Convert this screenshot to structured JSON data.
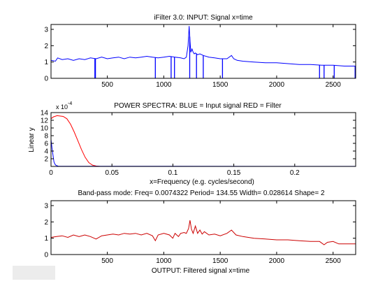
{
  "chart_data": [
    {
      "type": "line",
      "title": "iFilter 3.0: INPUT: Signal    x=time",
      "xlabel": "",
      "ylabel": "",
      "xlim": [
        1,
        2700
      ],
      "ylim": [
        0,
        3.3
      ],
      "xticks": [
        500,
        1000,
        1500,
        2000,
        2500
      ],
      "yticks": [
        0,
        1,
        2,
        3
      ],
      "series": [
        {
          "color": "#0000ff",
          "x": [
            1,
            40,
            60,
            100,
            150,
            200,
            250,
            300,
            350,
            400,
            450,
            500,
            550,
            600,
            650,
            700,
            750,
            800,
            850,
            900,
            950,
            1000,
            1050,
            1100,
            1150,
            1180,
            1200,
            1215,
            1225,
            1232,
            1240,
            1250,
            1260,
            1270,
            1280,
            1300,
            1320,
            1350,
            1400,
            1450,
            1500,
            1560,
            1600,
            1620,
            1650,
            1700,
            1800,
            1900,
            2000,
            2100,
            2200,
            2300,
            2400,
            2500,
            2600,
            2700
          ],
          "values": [
            1.1,
            1.05,
            1.25,
            1.15,
            1.2,
            1.1,
            1.2,
            1.15,
            1.25,
            1.2,
            1.3,
            1.2,
            1.25,
            1.3,
            1.2,
            1.3,
            1.25,
            1.3,
            1.35,
            1.3,
            1.25,
            1.3,
            1.35,
            1.3,
            1.25,
            1.2,
            1.3,
            2.0,
            3.2,
            2.3,
            1.6,
            1.8,
            1.6,
            1.5,
            1.55,
            1.45,
            1.5,
            1.4,
            1.3,
            1.25,
            1.2,
            1.2,
            1.4,
            1.2,
            1.1,
            1.05,
            1.0,
            0.95,
            0.95,
            0.9,
            0.85,
            0.85,
            0.8,
            0.8,
            0.75,
            0.75
          ]
        }
      ],
      "dropouts": [
        390,
        395,
        925,
        1065,
        1095,
        1230,
        1290,
        1350,
        1520,
        2380,
        2420,
        2510,
        2695
      ]
    },
    {
      "type": "line",
      "title": "POWER SPECTRA:  BLUE = Input signal   RED = Filter",
      "xlabel": "x=Frequency (e.g. cycles/second)",
      "ylabel": "Linear y",
      "y_multiplier": "x 10",
      "y_exponent": "-4",
      "xlim": [
        0,
        0.25
      ],
      "ylim": [
        0,
        14
      ],
      "xticks": [
        0,
        0.05,
        0.1,
        0.15,
        0.2
      ],
      "yticks": [
        2,
        4,
        6,
        8,
        10,
        12,
        14
      ],
      "series": [
        {
          "color": "#ff0000",
          "x": [
            0,
            0.002,
            0.005,
            0.01,
            0.013,
            0.016,
            0.019,
            0.022,
            0.025,
            0.028,
            0.031,
            0.034,
            0.037,
            0.04,
            0.045,
            0.25
          ],
          "values": [
            12.4,
            12.9,
            13.2,
            13.0,
            12.4,
            11.0,
            9.0,
            6.7,
            4.4,
            2.4,
            1.0,
            0.35,
            0.1,
            0.02,
            0.0,
            0.0
          ]
        },
        {
          "color": "#0000ff",
          "x": [
            0,
            0.0008,
            0.0016,
            0.0024,
            0.0032,
            0.004,
            0.006,
            0.25
          ],
          "values": [
            7.0,
            4.8,
            3.0,
            1.2,
            0.6,
            0.3,
            0.05,
            0.02
          ]
        }
      ]
    },
    {
      "type": "line",
      "title": "Band-pass mode:  Freq= 0.0074322    Period= 134.55   Width= 0.028614     Shape=  2",
      "xlabel": "OUTPUT: Filtered signal    x=time",
      "ylabel": "",
      "xlim": [
        1,
        2700
      ],
      "ylim": [
        0,
        3.3
      ],
      "xticks": [
        500,
        1000,
        1500,
        2000,
        2500
      ],
      "yticks": [
        0,
        1,
        2,
        3
      ],
      "series": [
        {
          "color": "#cc0000",
          "x": [
            1,
            50,
            100,
            150,
            200,
            250,
            300,
            350,
            400,
            450,
            500,
            550,
            600,
            650,
            700,
            750,
            800,
            850,
            900,
            925,
            950,
            1000,
            1050,
            1080,
            1100,
            1130,
            1150,
            1180,
            1200,
            1220,
            1232,
            1245,
            1260,
            1280,
            1300,
            1320,
            1340,
            1360,
            1400,
            1450,
            1500,
            1560,
            1600,
            1640,
            1700,
            1800,
            1900,
            2000,
            2100,
            2200,
            2300,
            2380,
            2420,
            2450,
            2500,
            2550,
            2600,
            2700
          ],
          "values": [
            1.05,
            1.1,
            1.15,
            1.05,
            1.2,
            1.1,
            1.2,
            1.1,
            0.95,
            1.15,
            1.2,
            1.25,
            1.2,
            1.3,
            1.25,
            1.3,
            1.2,
            1.3,
            1.15,
            0.85,
            1.2,
            1.3,
            1.2,
            1.0,
            1.3,
            1.1,
            1.3,
            1.35,
            1.3,
            1.6,
            2.1,
            1.55,
            1.3,
            1.75,
            1.3,
            1.5,
            1.25,
            1.4,
            1.2,
            1.25,
            1.15,
            1.3,
            1.5,
            1.2,
            1.1,
            1.0,
            0.95,
            0.9,
            0.9,
            0.85,
            0.8,
            0.8,
            0.6,
            0.75,
            0.8,
            0.65,
            0.65,
            0.65
          ]
        }
      ]
    }
  ]
}
